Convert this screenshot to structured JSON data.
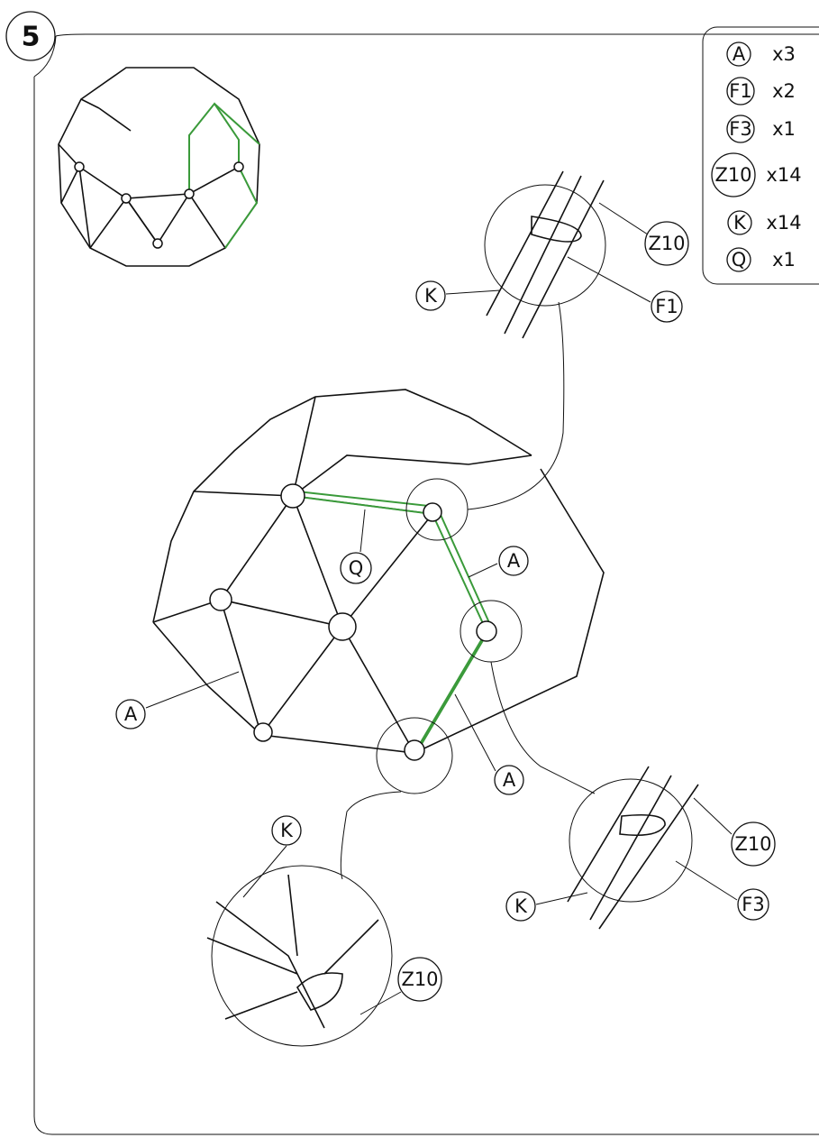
{
  "step": "5",
  "parts": [
    {
      "label": "A",
      "qty": "x3"
    },
    {
      "label": "F1",
      "qty": "x2"
    },
    {
      "label": "F3",
      "qty": "x1"
    },
    {
      "label": "Z10",
      "qty": "x14"
    },
    {
      "label": "K",
      "qty": "x14"
    },
    {
      "label": "Q",
      "qty": "x1"
    }
  ],
  "callouts": [
    {
      "label": "Z10"
    },
    {
      "label": "F1"
    },
    {
      "label": "K"
    },
    {
      "label": "Q"
    },
    {
      "label": "A"
    },
    {
      "label": "A"
    },
    {
      "label": "A"
    },
    {
      "label": "Z10"
    },
    {
      "label": "F3"
    },
    {
      "label": "K"
    },
    {
      "label": "K"
    },
    {
      "label": "Z10"
    }
  ]
}
